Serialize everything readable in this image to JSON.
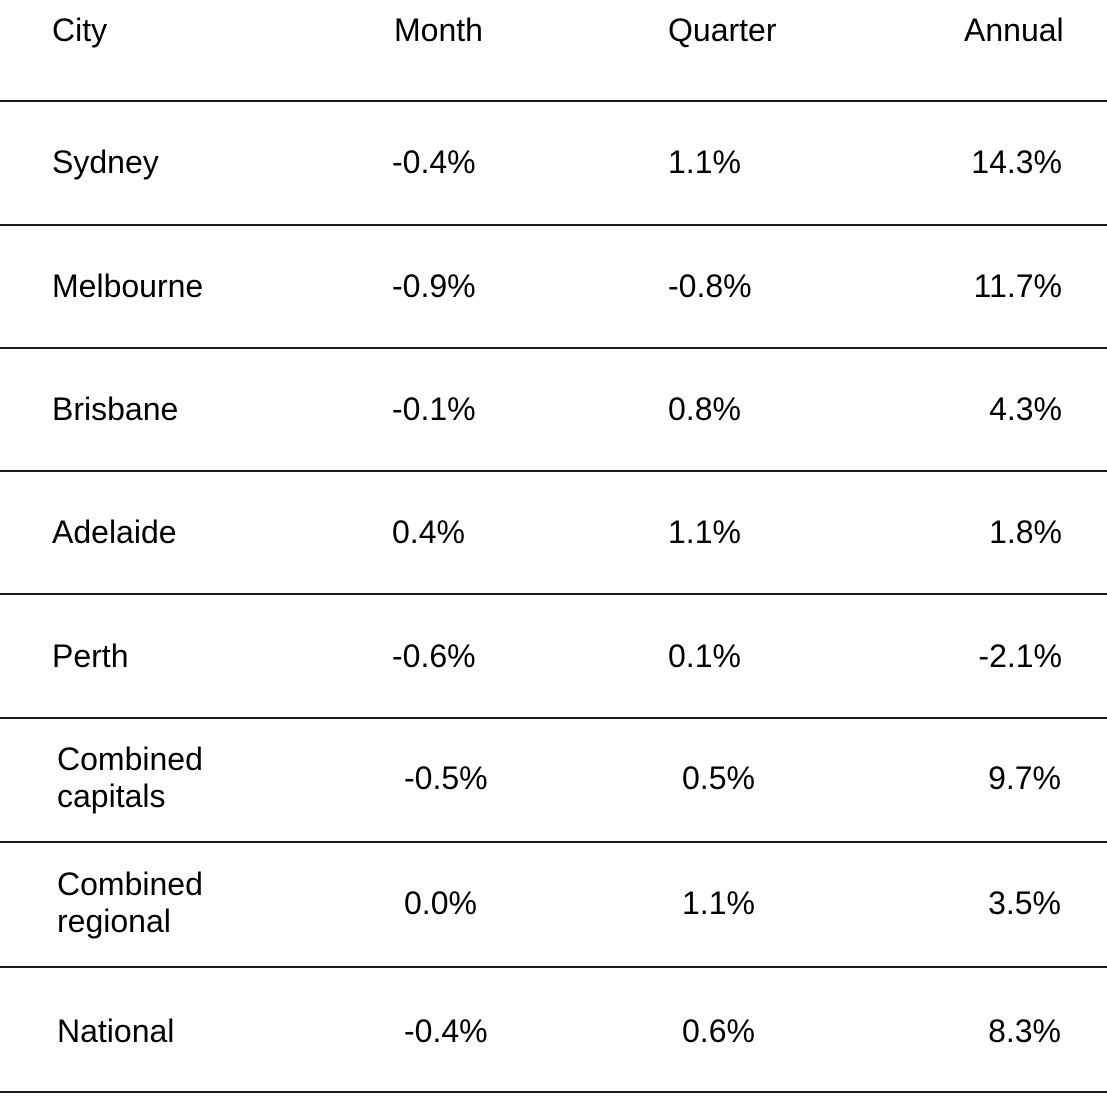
{
  "chart_data": {
    "type": "table",
    "columns": [
      "City",
      "Month",
      "Quarter",
      "Annual"
    ],
    "rows": [
      {
        "city": "Sydney",
        "month": "-0.4%",
        "quarter": "1.1%",
        "annual": "14.3%"
      },
      {
        "city": "Melbourne",
        "month": "-0.9%",
        "quarter": "-0.8%",
        "annual": "11.7%"
      },
      {
        "city": "Brisbane",
        "month": "-0.1%",
        "quarter": "0.8%",
        "annual": "4.3%"
      },
      {
        "city": "Adelaide",
        "month": "0.4%",
        "quarter": "1.1%",
        "annual": "1.8%"
      },
      {
        "city": "Perth",
        "month": "-0.6%",
        "quarter": "0.1%",
        "annual": "-2.1%"
      },
      {
        "city": "Combined capitals",
        "month": "-0.5%",
        "quarter": "0.5%",
        "annual": "9.7%"
      },
      {
        "city": "Combined regional",
        "month": "0.0%",
        "quarter": "1.1%",
        "annual": "3.5%"
      },
      {
        "city": "National",
        "month": "-0.4%",
        "quarter": "0.6%",
        "annual": "8.3%"
      }
    ]
  }
}
